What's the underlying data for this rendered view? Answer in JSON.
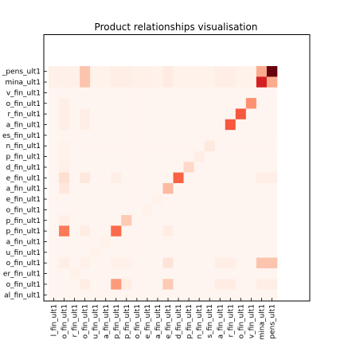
{
  "chart_data": {
    "type": "heatmap",
    "title": "Product relationships visualisation",
    "xlabel": "",
    "ylabel": "",
    "colormap": "Reds",
    "colors": {
      "low": "#fff5f0",
      "high": "#67000d"
    },
    "value_range": [
      0,
      1
    ],
    "legend": "none",
    "grid": false,
    "row_labels": [
      "_pens_ult1",
      "mina_ult1",
      "v_fin_ult1",
      "o_fin_ult1",
      "r_fin_ult1",
      "a_fin_ult1",
      "es_fin_ult1",
      "n_fin_ult1",
      "p_fin_ult1",
      "d_fin_ult1",
      "e_fin_ult1",
      "a_fin_ult1",
      "e_fin_ult1",
      "o_fin_ult1",
      "p_fin_ult1",
      "p_fin_ult1",
      "a_fin_ult1",
      "u_fin_ult1",
      "o_fin_ult1",
      "er_fin_ult1",
      "o_fin_ult1",
      "al_fin_ult1"
    ],
    "col_labels": [
      "l_fin_ult1",
      "o_fin_ult1",
      "r_fin_ult1",
      "o_fin_ult1",
      "u_fin_ult1",
      "a_fin_ult1",
      "p_fin_ult1",
      "p_fin_ult1",
      "o_fin_ult1",
      "e_fin_ult1",
      "a_fin_ult1",
      "e_fin_ult1",
      "d_fin_ult1",
      "p_fin_ult1",
      "n_fin_ult1",
      "s_fin_ult1",
      "a_fin_ult1",
      "r_fin_ult1",
      "o_fin_ult1",
      "v_fin_ult1",
      "mina_ult1",
      "pens_ult1"
    ],
    "values": [
      [
        0.03,
        0.03,
        0.03,
        0.22,
        0.02,
        0.02,
        0.04,
        0.04,
        0.03,
        0.03,
        0.02,
        0.06,
        0.02,
        0.02,
        0.02,
        0.02,
        0.04,
        0.04,
        0.02,
        0.02,
        0.3,
        1.0
      ],
      [
        0.03,
        0.03,
        0.03,
        0.22,
        0.02,
        0.02,
        0.04,
        0.04,
        0.03,
        0.03,
        0.02,
        0.06,
        0.02,
        0.02,
        0.02,
        0.02,
        0.04,
        0.04,
        0.02,
        0.02,
        0.72,
        0.3
      ],
      [
        0.0,
        0.0,
        0.0,
        0.0,
        0.0,
        0.0,
        0.0,
        0.0,
        0.0,
        0.0,
        0.0,
        0.0,
        0.0,
        0.0,
        0.0,
        0.0,
        0.0,
        0.0,
        0.0,
        0.0,
        0.0,
        0.0
      ],
      [
        0.0,
        0.04,
        0.0,
        0.0,
        0.0,
        0.0,
        0.0,
        0.0,
        0.0,
        0.0,
        0.0,
        0.0,
        0.0,
        0.0,
        0.0,
        0.0,
        0.0,
        0.0,
        0.0,
        0.38,
        0.0,
        0.0
      ],
      [
        0.0,
        0.04,
        0.0,
        0.04,
        0.0,
        0.0,
        0.0,
        0.0,
        0.0,
        0.0,
        0.0,
        0.0,
        0.0,
        0.0,
        0.0,
        0.0,
        0.0,
        0.0,
        0.55,
        0.0,
        0.0,
        0.0
      ],
      [
        0.0,
        0.04,
        0.0,
        0.04,
        0.0,
        0.0,
        0.0,
        0.0,
        0.0,
        0.0,
        0.0,
        0.0,
        0.0,
        0.0,
        0.0,
        0.0,
        0.0,
        0.55,
        0.0,
        0.0,
        0.0,
        0.0
      ],
      [
        0.0,
        0.0,
        0.0,
        0.0,
        0.0,
        0.0,
        0.0,
        0.0,
        0.0,
        0.0,
        0.0,
        0.0,
        0.0,
        0.0,
        0.0,
        0.0,
        0.0,
        0.0,
        0.0,
        0.0,
        0.0,
        0.0
      ],
      [
        0.0,
        0.02,
        0.0,
        0.0,
        0.0,
        0.0,
        0.0,
        0.0,
        0.0,
        0.0,
        0.0,
        0.0,
        0.0,
        0.0,
        0.0,
        0.07,
        0.0,
        0.0,
        0.0,
        0.0,
        0.0,
        0.0
      ],
      [
        0.0,
        0.02,
        0.0,
        0.0,
        0.0,
        0.0,
        0.0,
        0.0,
        0.0,
        0.0,
        0.0,
        0.0,
        0.0,
        0.0,
        0.04,
        0.0,
        0.0,
        0.0,
        0.0,
        0.0,
        0.0,
        0.0
      ],
      [
        0.0,
        0.03,
        0.0,
        0.0,
        0.0,
        0.0,
        0.0,
        0.0,
        0.0,
        0.0,
        0.0,
        0.0,
        0.0,
        0.15,
        0.0,
        0.0,
        0.0,
        0.0,
        0.0,
        0.0,
        0.0,
        0.0
      ],
      [
        0.0,
        0.13,
        0.0,
        0.08,
        0.0,
        0.0,
        0.04,
        0.0,
        0.0,
        0.0,
        0.0,
        0.0,
        0.52,
        0.0,
        0.0,
        0.0,
        0.0,
        0.0,
        0.0,
        0.0,
        0.04,
        0.04
      ],
      [
        0.0,
        0.08,
        0.0,
        0.0,
        0.0,
        0.0,
        0.0,
        0.0,
        0.0,
        0.0,
        0.0,
        0.25,
        0.0,
        0.0,
        0.0,
        0.0,
        0.0,
        0.0,
        0.0,
        0.0,
        0.0,
        0.0
      ],
      [
        0.0,
        0.0,
        0.0,
        0.0,
        0.0,
        0.0,
        0.0,
        0.0,
        0.0,
        0.0,
        0.02,
        0.0,
        0.0,
        0.0,
        0.0,
        0.0,
        0.0,
        0.0,
        0.0,
        0.0,
        0.0,
        0.0
      ],
      [
        0.0,
        0.0,
        0.0,
        0.0,
        0.0,
        0.0,
        0.0,
        0.0,
        0.0,
        0.02,
        0.0,
        0.0,
        0.0,
        0.0,
        0.0,
        0.0,
        0.0,
        0.0,
        0.0,
        0.0,
        0.0,
        0.0
      ],
      [
        0.0,
        0.04,
        0.0,
        0.0,
        0.0,
        0.0,
        0.0,
        0.2,
        0.0,
        0.0,
        0.0,
        0.0,
        0.0,
        0.0,
        0.0,
        0.0,
        0.0,
        0.0,
        0.0,
        0.0,
        0.0,
        0.0
      ],
      [
        0.0,
        0.45,
        0.0,
        0.05,
        0.0,
        0.0,
        0.5,
        0.0,
        0.0,
        0.0,
        0.0,
        0.05,
        0.0,
        0.0,
        0.0,
        0.0,
        0.0,
        0.0,
        0.0,
        0.0,
        0.0,
        0.0
      ],
      [
        0.0,
        0.0,
        0.0,
        0.0,
        0.0,
        0.02,
        0.0,
        0.0,
        0.0,
        0.0,
        0.0,
        0.0,
        0.0,
        0.0,
        0.0,
        0.0,
        0.0,
        0.0,
        0.0,
        0.0,
        0.0,
        0.0
      ],
      [
        0.0,
        0.0,
        0.0,
        0.0,
        0.02,
        0.0,
        0.0,
        0.0,
        0.0,
        0.0,
        0.0,
        0.0,
        0.0,
        0.0,
        0.0,
        0.0,
        0.0,
        0.0,
        0.0,
        0.0,
        0.0,
        0.0
      ],
      [
        0.0,
        0.04,
        0.0,
        0.03,
        0.0,
        0.0,
        0.03,
        0.03,
        0.0,
        0.0,
        0.0,
        0.1,
        0.0,
        0.0,
        0.0,
        0.0,
        0.04,
        0.04,
        0.0,
        0.0,
        0.22,
        0.22
      ],
      [
        0.0,
        0.0,
        0.02,
        0.0,
        0.0,
        0.0,
        0.0,
        0.0,
        0.0,
        0.0,
        0.0,
        0.0,
        0.0,
        0.0,
        0.0,
        0.0,
        0.0,
        0.0,
        0.0,
        0.0,
        0.0,
        0.0
      ],
      [
        0.0,
        0.0,
        0.0,
        0.05,
        0.0,
        0.0,
        0.35,
        0.05,
        0.0,
        0.0,
        0.0,
        0.2,
        0.0,
        0.0,
        0.0,
        0.0,
        0.05,
        0.05,
        0.0,
        0.0,
        0.04,
        0.04
      ],
      [
        0.0,
        0.0,
        0.0,
        0.0,
        0.0,
        0.0,
        0.0,
        0.0,
        0.0,
        0.0,
        0.0,
        0.0,
        0.0,
        0.0,
        0.0,
        0.0,
        0.0,
        0.0,
        0.0,
        0.0,
        0.0,
        0.0
      ]
    ]
  }
}
